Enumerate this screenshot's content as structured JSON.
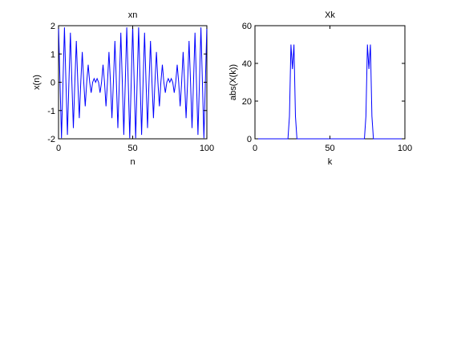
{
  "chart_data": [
    {
      "type": "line",
      "title": "xn",
      "x_label": "n",
      "y_label": "x(n)",
      "color": "#0000ff",
      "x": [
        0,
        1,
        2,
        3,
        4,
        5,
        6,
        7,
        8,
        9,
        10,
        11,
        12,
        13,
        14,
        15,
        16,
        17,
        18,
        19,
        20,
        21,
        22,
        23,
        24,
        25,
        26,
        27,
        28,
        29,
        30,
        31,
        32,
        33,
        34,
        35,
        36,
        37,
        38,
        39,
        40,
        41,
        42,
        43,
        44,
        45,
        46,
        47,
        48,
        49,
        50,
        51,
        52,
        53,
        54,
        55,
        56,
        57,
        58,
        59,
        60,
        61,
        62,
        63,
        64,
        65,
        66,
        67,
        68,
        69,
        70,
        71,
        72,
        73,
        74,
        75,
        76,
        77,
        78,
        79,
        80,
        81,
        82,
        83,
        84,
        85,
        86,
        87,
        88,
        89,
        90,
        91,
        92,
        93,
        94,
        95,
        96,
        97,
        98,
        99,
        100
      ],
      "values": [
        2,
        0,
        -1.98,
        0,
        1.94,
        0,
        -1.86,
        0,
        1.75,
        0,
        -1.62,
        0,
        1.46,
        0,
        -1.27,
        0,
        1.07,
        0,
        -0.85,
        0,
        0.62,
        0,
        -0.37,
        0,
        0.13,
        0,
        0.13,
        0,
        -0.37,
        0,
        0.62,
        0,
        -0.85,
        0,
        1.07,
        0,
        -1.27,
        0,
        1.46,
        0,
        -1.62,
        0,
        1.75,
        0,
        -1.86,
        0,
        1.94,
        0,
        -1.98,
        0,
        2,
        0,
        -1.98,
        0,
        1.94,
        0,
        -1.86,
        0,
        1.75,
        0,
        -1.62,
        0,
        1.46,
        0,
        -1.27,
        0,
        1.07,
        0,
        -0.85,
        0,
        0.62,
        0,
        -0.37,
        0,
        0.13,
        0,
        0.13,
        0,
        -0.37,
        0,
        0.62,
        0,
        -0.85,
        0,
        1.07,
        0,
        -1.27,
        0,
        1.46,
        0,
        -1.62,
        0,
        1.75,
        0,
        -1.86,
        0,
        1.94,
        0,
        -1.98,
        0,
        2
      ],
      "xlim": [
        0,
        100
      ],
      "ylim": [
        -2,
        2
      ],
      "xticks": [
        0,
        50,
        100
      ],
      "yticks": [
        -2,
        -1,
        0,
        1,
        2
      ]
    },
    {
      "type": "line",
      "title": "Xk",
      "x_label": "k",
      "y_label": "abs(X(k))",
      "color": "#0000ff",
      "x": [
        0,
        1,
        2,
        3,
        4,
        5,
        6,
        7,
        8,
        9,
        10,
        11,
        12,
        13,
        14,
        15,
        16,
        17,
        18,
        19,
        20,
        21,
        22,
        23,
        24,
        25,
        26,
        27,
        28,
        29,
        30,
        31,
        32,
        33,
        34,
        35,
        36,
        37,
        38,
        39,
        40,
        41,
        42,
        43,
        44,
        45,
        46,
        47,
        48,
        49,
        50,
        51,
        52,
        53,
        54,
        55,
        56,
        57,
        58,
        59,
        60,
        61,
        62,
        63,
        64,
        65,
        66,
        67,
        68,
        69,
        70,
        71,
        72,
        73,
        74,
        75,
        76,
        77,
        78,
        79,
        80,
        81,
        82,
        83,
        84,
        85,
        86,
        87,
        88,
        89,
        90,
        91,
        92,
        93,
        94,
        95,
        96,
        97,
        98,
        99,
        100
      ],
      "values": [
        0,
        0,
        0,
        0,
        0,
        0,
        0,
        0,
        0,
        0,
        0,
        0,
        0,
        0,
        0,
        0,
        0,
        0,
        0,
        0,
        0,
        0,
        0,
        12,
        50,
        37,
        50,
        12,
        0,
        0,
        0,
        0,
        0,
        0,
        0,
        0,
        0,
        0,
        0,
        0,
        0,
        0,
        0,
        0,
        0,
        0,
        0,
        0,
        0,
        0,
        0,
        0,
        0,
        0,
        0,
        0,
        0,
        0,
        0,
        0,
        0,
        0,
        0,
        0,
        0,
        0,
        0,
        0,
        0,
        0,
        0,
        0,
        0,
        0,
        12,
        50,
        37,
        50,
        12,
        0,
        0,
        0,
        0,
        0,
        0,
        0,
        0,
        0,
        0,
        0,
        0,
        0,
        0,
        0,
        0,
        0,
        0,
        0,
        0,
        0,
        0
      ],
      "xlim": [
        0,
        100
      ],
      "ylim": [
        0,
        60
      ],
      "xticks": [
        0,
        50,
        100
      ],
      "yticks": [
        0,
        20,
        40,
        60
      ]
    }
  ]
}
